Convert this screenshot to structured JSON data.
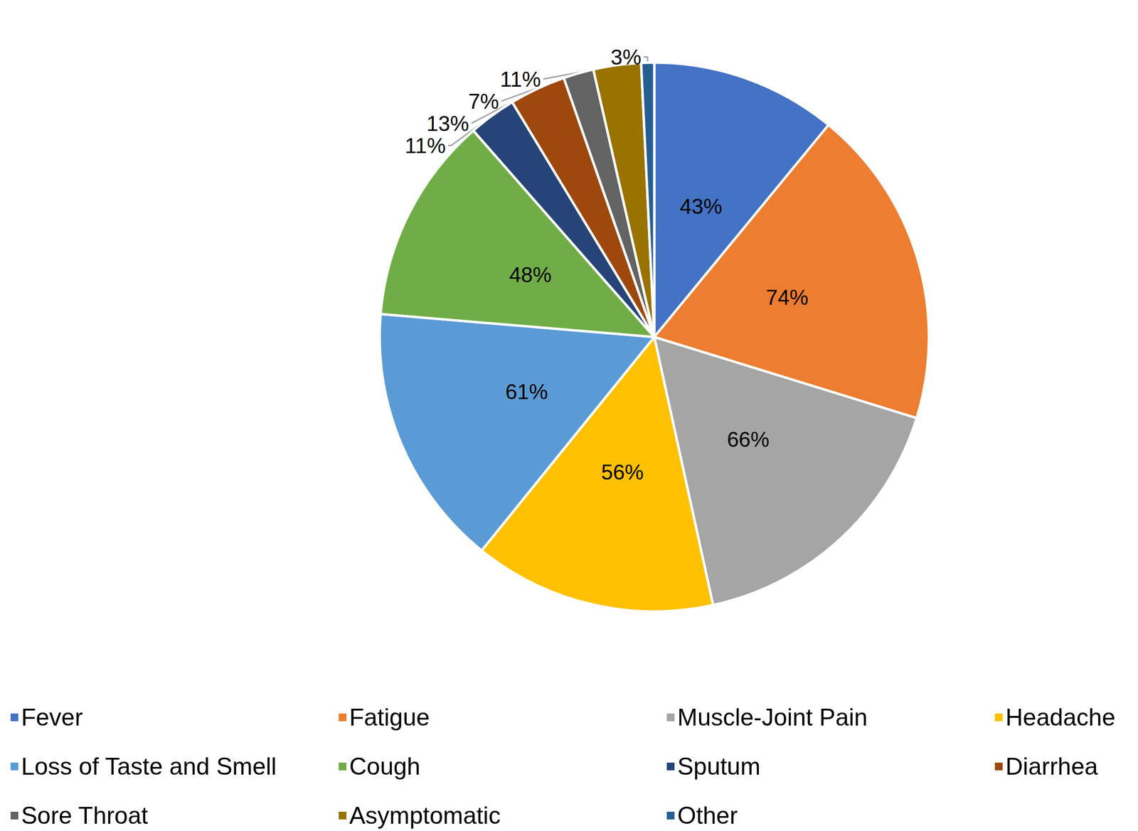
{
  "chart_data": {
    "type": "pie",
    "categories": [
      "Fever",
      "Fatigue",
      "Muscle-Joint Pain",
      "Headache",
      "Loss of Taste and Smell",
      "Cough",
      "Sputum",
      "Diarrhea",
      "Sore Throat",
      "Asymptomatic",
      "Other"
    ],
    "values": [
      43,
      74,
      66,
      56,
      61,
      48,
      11,
      13,
      7,
      11,
      3
    ],
    "value_labels": [
      "43%",
      "74%",
      "66%",
      "56%",
      "61%",
      "48%",
      "11%",
      "13%",
      "7%",
      "11%",
      "3%"
    ],
    "colors": [
      "#4472c4",
      "#ed7d31",
      "#a5a5a5",
      "#ffc000",
      "#5b9bd5",
      "#70ad47",
      "#264478",
      "#9e480e",
      "#636363",
      "#997300",
      "#255e91"
    ],
    "data_labels": true,
    "legend": "bottom"
  }
}
